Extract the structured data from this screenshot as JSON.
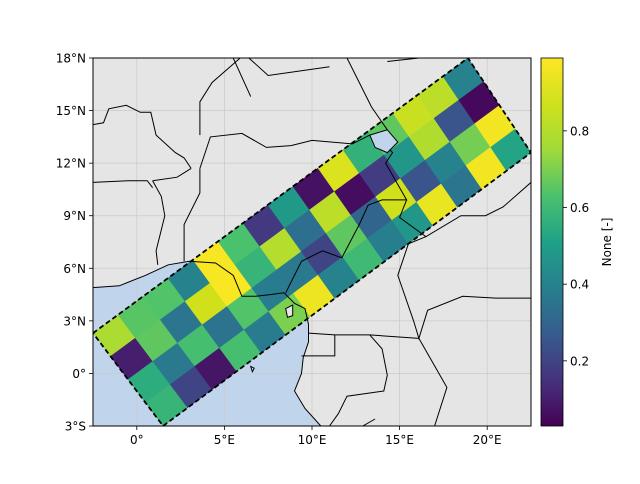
{
  "chart_data": {
    "type": "heatmap",
    "title": "",
    "xlim": [
      -2.5,
      22.5
    ],
    "ylim": [
      -3,
      18
    ],
    "xticks": [
      {
        "value": 0,
        "label": "0°"
      },
      {
        "value": 5,
        "label": "5°E"
      },
      {
        "value": 10,
        "label": "10°E"
      },
      {
        "value": 15,
        "label": "15°E"
      },
      {
        "value": 20,
        "label": "20°E"
      }
    ],
    "yticks": [
      {
        "value": -3,
        "label": "3°S"
      },
      {
        "value": 0,
        "label": "0°"
      },
      {
        "value": 3,
        "label": "3°N"
      },
      {
        "value": 6,
        "label": "6°N"
      },
      {
        "value": 9,
        "label": "9°N"
      },
      {
        "value": 12,
        "label": "12°N"
      },
      {
        "value": 15,
        "label": "15°N"
      },
      {
        "value": 18,
        "label": "18°N"
      }
    ],
    "grid": true,
    "swath": {
      "corners": [
        [
          -2.5,
          2.3
        ],
        [
          18.9,
          18.0
        ],
        [
          22.5,
          12.6
        ],
        [
          1.5,
          -3.0
        ]
      ],
      "rows": 4,
      "cols": 15,
      "values": [
        [
          0.78,
          0.65,
          0.64,
          0.4,
          0.97,
          0.63,
          0.17,
          0.48,
          0.07,
          0.9,
          0.57,
          0.66,
          0.85,
          0.82,
          0.4
        ],
        [
          0.1,
          0.66,
          0.36,
          0.87,
          0.98,
          0.58,
          0.8,
          0.33,
          0.82,
          0.06,
          0.18,
          0.47,
          0.79,
          0.25,
          0.05
        ],
        [
          0.55,
          0.37,
          0.62,
          0.35,
          0.64,
          0.38,
          0.37,
          0.2,
          0.66,
          0.3,
          0.87,
          0.25,
          0.4,
          0.69,
          0.96
        ],
        [
          0.58,
          0.2,
          0.08,
          0.62,
          0.38,
          0.7,
          0.95,
          0.4,
          0.6,
          0.39,
          0.47,
          0.94,
          0.36,
          0.96,
          0.52
        ]
      ]
    },
    "colorbar": {
      "label": "None [-]",
      "colormap": "viridis",
      "range": [
        0.03,
        0.99
      ],
      "ticks": [
        {
          "value": 0.2,
          "label": "0.2"
        },
        {
          "value": 0.4,
          "label": "0.4"
        },
        {
          "value": 0.6,
          "label": "0.6"
        },
        {
          "value": 0.8,
          "label": "0.8"
        }
      ]
    },
    "colors": {
      "land": "#e5e5e5",
      "ocean": "#c0d4ec",
      "outline": "#000000",
      "gridline": "#cccccc"
    },
    "basemap": {
      "coastline": [
        [
          -2.5,
          4.9
        ],
        [
          -1.0,
          5.0
        ],
        [
          0.5,
          5.6
        ],
        [
          1.8,
          6.2
        ],
        [
          3.0,
          6.4
        ],
        [
          4.5,
          6.3
        ],
        [
          5.5,
          5.6
        ],
        [
          6.0,
          4.4
        ],
        [
          6.8,
          4.4
        ],
        [
          7.6,
          4.5
        ],
        [
          8.4,
          4.6
        ],
        [
          9.0,
          4.0
        ],
        [
          9.6,
          3.7
        ],
        [
          9.8,
          2.8
        ],
        [
          9.8,
          1.8
        ],
        [
          9.5,
          0.9
        ],
        [
          9.4,
          0.0
        ],
        [
          9.0,
          -1.0
        ],
        [
          9.6,
          -2.0
        ],
        [
          10.5,
          -3.0
        ]
      ],
      "lake_chad": [
        [
          13.3,
          13.6
        ],
        [
          14.3,
          13.9
        ],
        [
          14.9,
          13.2
        ],
        [
          14.3,
          12.6
        ],
        [
          13.6,
          12.9
        ],
        [
          13.3,
          13.6
        ]
      ],
      "bioko": [
        [
          8.5,
          3.7
        ],
        [
          8.9,
          3.9
        ],
        [
          8.9,
          3.3
        ],
        [
          8.6,
          3.2
        ],
        [
          8.5,
          3.7
        ]
      ],
      "sao_tome": [
        [
          6.5,
          0.4
        ],
        [
          6.7,
          0.3
        ],
        [
          6.6,
          0.1
        ],
        [
          6.5,
          0.4
        ]
      ],
      "borders": [
        [
          [
            -2.5,
            14.2
          ],
          [
            -1.9,
            14.3
          ],
          [
            -1.6,
            15.1
          ],
          [
            -0.6,
            15.3
          ],
          [
            0.2,
            14.9
          ],
          [
            0.8,
            14.9
          ],
          [
            1.1,
            13.6
          ],
          [
            2.2,
            12.6
          ],
          [
            2.7,
            12.3
          ],
          [
            3.1,
            11.7
          ]
        ],
        [
          [
            -2.5,
            10.9
          ],
          [
            -0.5,
            11.0
          ],
          [
            0.6,
            11.0
          ],
          [
            0.9,
            10.6
          ]
        ],
        [
          [
            0.9,
            11.0
          ],
          [
            2.3,
            11.2
          ],
          [
            3.1,
            11.7
          ]
        ],
        [
          [
            1.2,
            6.2
          ],
          [
            1.1,
            7.0
          ],
          [
            1.6,
            9.0
          ],
          [
            1.4,
            10.1
          ],
          [
            0.9,
            11.0
          ]
        ],
        [
          [
            2.7,
            6.4
          ],
          [
            2.7,
            8.5
          ],
          [
            3.6,
            10.3
          ],
          [
            3.6,
            11.7
          ]
        ],
        [
          [
            3.6,
            11.7
          ],
          [
            4.2,
            13.5
          ],
          [
            6.0,
            13.7
          ],
          [
            7.4,
            12.9
          ],
          [
            8.8,
            13.0
          ],
          [
            10.0,
            13.3
          ],
          [
            12.3,
            13.1
          ],
          [
            13.3,
            13.6
          ]
        ],
        [
          [
            3.6,
            13.6
          ],
          [
            3.6,
            15.5
          ],
          [
            4.3,
            16.6
          ],
          [
            5.9,
            18.0
          ]
        ],
        [
          [
            6.4,
            18.0
          ],
          [
            7.5,
            17.0
          ],
          [
            11.0,
            17.5
          ]
        ],
        [
          [
            12.0,
            18.0
          ],
          [
            13.4,
            15.2
          ],
          [
            14.3,
            13.9
          ]
        ],
        [
          [
            5.5,
            18.0
          ],
          [
            6.5,
            15.8
          ]
        ],
        [
          [
            8.5,
            4.6
          ],
          [
            9.4,
            6.4
          ],
          [
            10.6,
            7.0
          ],
          [
            11.7,
            6.6
          ],
          [
            12.7,
            8.5
          ],
          [
            13.2,
            9.6
          ],
          [
            14.0,
            9.9
          ],
          [
            15.4,
            9.9
          ],
          [
            14.2,
            12.0
          ],
          [
            14.6,
            12.6
          ],
          [
            14.1,
            13.1
          ]
        ],
        [
          [
            15.4,
            9.9
          ],
          [
            15.0,
            8.9
          ],
          [
            16.5,
            7.8
          ],
          [
            18.5,
            9.0
          ],
          [
            19.9,
            9.0
          ],
          [
            20.9,
            9.5
          ],
          [
            22.5,
            10.9
          ]
        ],
        [
          [
            16.5,
            7.8
          ],
          [
            15.5,
            7.4
          ],
          [
            14.9,
            5.6
          ],
          [
            15.8,
            3.0
          ],
          [
            16.1,
            2.0
          ],
          [
            16.6,
            3.6
          ],
          [
            18.6,
            4.4
          ],
          [
            20.5,
            4.3
          ],
          [
            22.5,
            4.3
          ]
        ],
        [
          [
            9.8,
            2.3
          ],
          [
            11.3,
            2.2
          ],
          [
            13.3,
            2.2
          ],
          [
            16.1,
            2.0
          ]
        ],
        [
          [
            11.3,
            2.2
          ],
          [
            11.3,
            1.0
          ],
          [
            9.4,
            1.0
          ]
        ],
        [
          [
            13.3,
            2.2
          ],
          [
            14.0,
            1.4
          ],
          [
            14.3,
            -0.1
          ],
          [
            14.1,
            -1.0
          ],
          [
            12.0,
            -1.3
          ],
          [
            11.5,
            -2.3
          ],
          [
            11.0,
            -3.0
          ]
        ],
        [
          [
            16.1,
            2.0
          ],
          [
            17.7,
            -0.8
          ],
          [
            17.0,
            -3.0
          ]
        ],
        [
          [
            12.9,
            -3.0
          ],
          [
            13.6,
            -2.6
          ]
        ],
        [
          [
            14.3,
            17.8
          ],
          [
            16.1,
            18.0
          ]
        ]
      ]
    }
  }
}
